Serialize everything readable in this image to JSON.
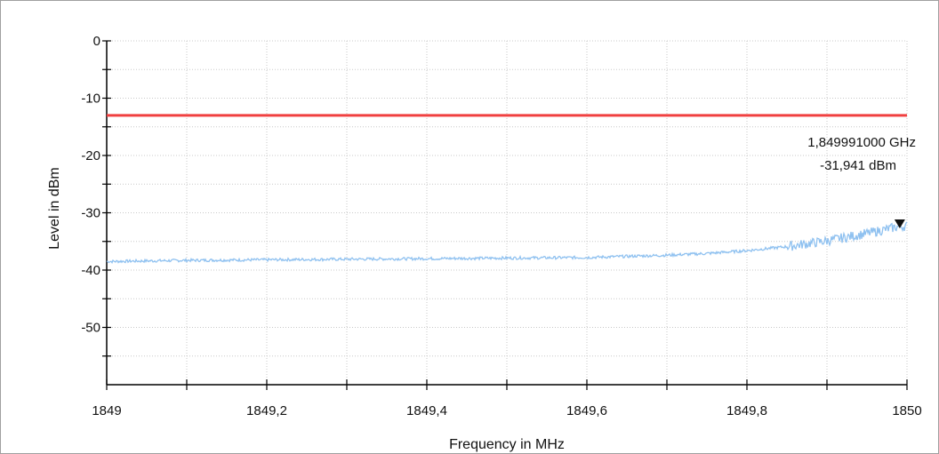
{
  "chart_data": {
    "type": "line",
    "xlabel": "Frequency in MHz",
    "ylabel": "Level in dBm",
    "xlim": [
      1849,
      1850
    ],
    "ylim": [
      -60,
      0
    ],
    "x_ticks": [
      1849,
      1849.2,
      1849.4,
      1849.6,
      1849.8,
      1850
    ],
    "x_tick_labels": [
      "1849",
      "1849,2",
      "1849,4",
      "1849,6",
      "1849,8",
      "1850"
    ],
    "y_ticks": [
      0,
      -10,
      -20,
      -30,
      -40,
      -50
    ],
    "y_tick_labels": [
      "0",
      "-10",
      "-20",
      "-30",
      "-40",
      "-50"
    ],
    "grid": true,
    "series": [
      {
        "color": "#8fc1f0",
        "x": [
          1849,
          1849.1,
          1849.2,
          1849.3,
          1849.4,
          1849.5,
          1849.6,
          1849.65,
          1849.7,
          1849.75,
          1849.8,
          1849.85,
          1849.9,
          1849.95,
          1849.99,
          1850
        ],
        "y": [
          -38.5,
          -38.3,
          -38.2,
          -38.1,
          -38.0,
          -37.9,
          -37.8,
          -37.6,
          -37.4,
          -37.1,
          -36.6,
          -35.9,
          -34.9,
          -33.6,
          -32.4,
          -32.3
        ]
      }
    ],
    "limit_line": {
      "y": -13,
      "color": "#f04040"
    },
    "marker": {
      "x": 1849.991,
      "y": -31.941,
      "freq_label": "1,849991000 GHz",
      "level_label": "-31,941 dBm"
    }
  }
}
